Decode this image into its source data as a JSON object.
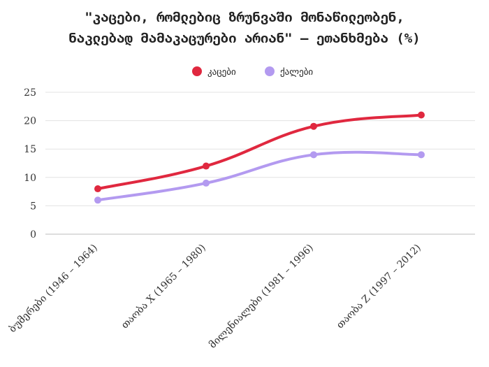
{
  "chart_data": {
    "type": "line",
    "title_lines": [
      "\"კაცები, რომლებიც ზრუნვაში მონაწილეობენ,",
      "ნაკლებად მამაკაცურები არიან\" — ეთანხმება (%)"
    ],
    "categories": [
      "ბუმერები (1946 – 1964)",
      "თაობა X (1965 – 1980)",
      "მილენიალები (1981 – 1996)",
      "თაობა Z (1997 – 2012)"
    ],
    "series": [
      {
        "name": "კაცები",
        "values": [
          8,
          12,
          19,
          21
        ],
        "color": "#e0283f"
      },
      {
        "name": "ქალები",
        "values": [
          6,
          9,
          14,
          14
        ],
        "color": "#b39af0"
      }
    ],
    "ylim": [
      0,
      25
    ],
    "yticks": [
      0,
      5,
      10,
      15,
      20,
      25
    ],
    "grid": true,
    "legend_position": "top-center"
  }
}
